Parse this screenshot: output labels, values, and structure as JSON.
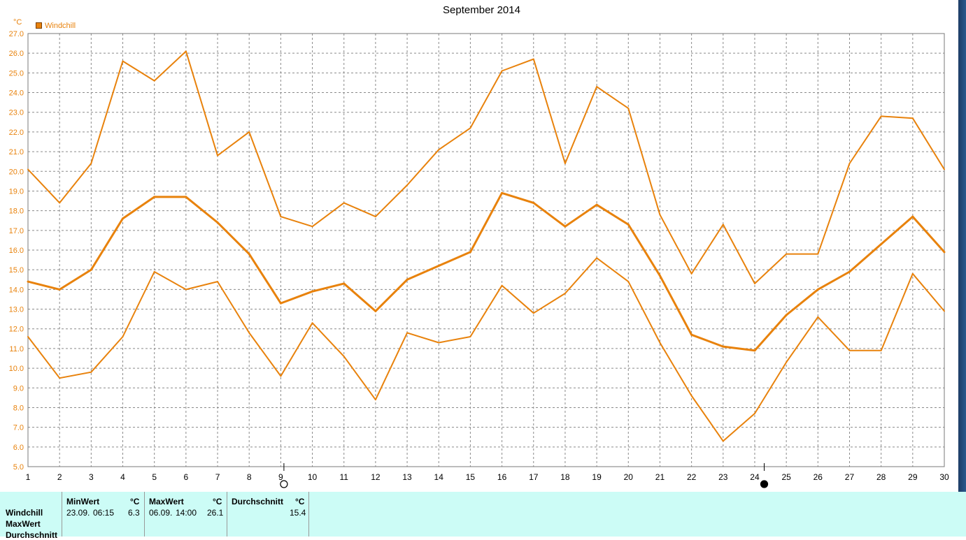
{
  "chart_data": {
    "type": "line",
    "title": "September 2014",
    "ylabel": "°C",
    "ylim": [
      5.0,
      27.0
    ],
    "yticks": [
      "5.0",
      "6.0",
      "7.0",
      "8.0",
      "9.0",
      "10.0",
      "11.0",
      "12.0",
      "13.0",
      "14.0",
      "15.0",
      "16.0",
      "17.0",
      "18.0",
      "19.0",
      "20.0",
      "21.0",
      "22.0",
      "23.0",
      "24.0",
      "25.0",
      "26.0",
      "27.0"
    ],
    "categories": [
      "1",
      "2",
      "3",
      "4",
      "5",
      "6",
      "7",
      "8",
      "9",
      "10",
      "11",
      "12",
      "13",
      "14",
      "15",
      "16",
      "17",
      "18",
      "19",
      "20",
      "21",
      "22",
      "23",
      "24",
      "25",
      "26",
      "27",
      "28",
      "29",
      "30"
    ],
    "grid": true,
    "legend_position": "top-left",
    "legend": [
      "Windchill"
    ],
    "color": "#e8820c",
    "series": [
      {
        "name": "Windchill",
        "role": "max",
        "values": [
          20.1,
          18.4,
          20.4,
          25.6,
          24.6,
          26.1,
          20.8,
          22.0,
          17.7,
          17.2,
          18.4,
          17.7,
          19.3,
          21.1,
          22.2,
          25.1,
          25.7,
          20.4,
          24.3,
          23.2,
          17.8,
          14.8,
          17.3,
          14.3,
          15.8,
          15.8,
          20.4,
          22.8,
          22.7,
          20.1
        ]
      },
      {
        "name": "Windchill",
        "role": "avg",
        "values": [
          14.4,
          14.0,
          15.0,
          17.6,
          18.7,
          18.7,
          17.4,
          15.8,
          13.3,
          13.9,
          14.3,
          12.9,
          14.5,
          15.2,
          15.9,
          18.9,
          18.4,
          17.2,
          18.3,
          17.3,
          14.7,
          11.7,
          11.1,
          10.9,
          12.7,
          14.0,
          14.9,
          16.3,
          17.7,
          15.9
        ]
      },
      {
        "name": "Windchill",
        "role": "min",
        "values": [
          11.6,
          9.5,
          9.8,
          11.6,
          14.9,
          14.0,
          14.4,
          11.8,
          9.6,
          12.3,
          10.6,
          8.4,
          11.8,
          11.3,
          11.6,
          14.2,
          12.8,
          13.8,
          15.6,
          14.4,
          11.3,
          8.6,
          6.3,
          7.7,
          10.3,
          12.6,
          10.9,
          10.9,
          14.8,
          12.9
        ]
      }
    ],
    "moon_markers": [
      {
        "day_position": 9.1,
        "phase": "full-moon"
      },
      {
        "day_position": 24.3,
        "phase": "new-moon"
      }
    ]
  },
  "stats": {
    "row_labels": [
      "Windchill",
      "MaxWert",
      "Durchschnitt"
    ],
    "min": {
      "header": "MinWert",
      "unit": "°C",
      "date": "23.09.",
      "time": "06:15",
      "value": "6.3"
    },
    "max": {
      "header": "MaxWert",
      "unit": "°C",
      "date": "06.09.",
      "time": "14:00",
      "value": "26.1"
    },
    "avg": {
      "header": "Durchschnitt",
      "unit": "°C",
      "value": "15.4"
    }
  }
}
